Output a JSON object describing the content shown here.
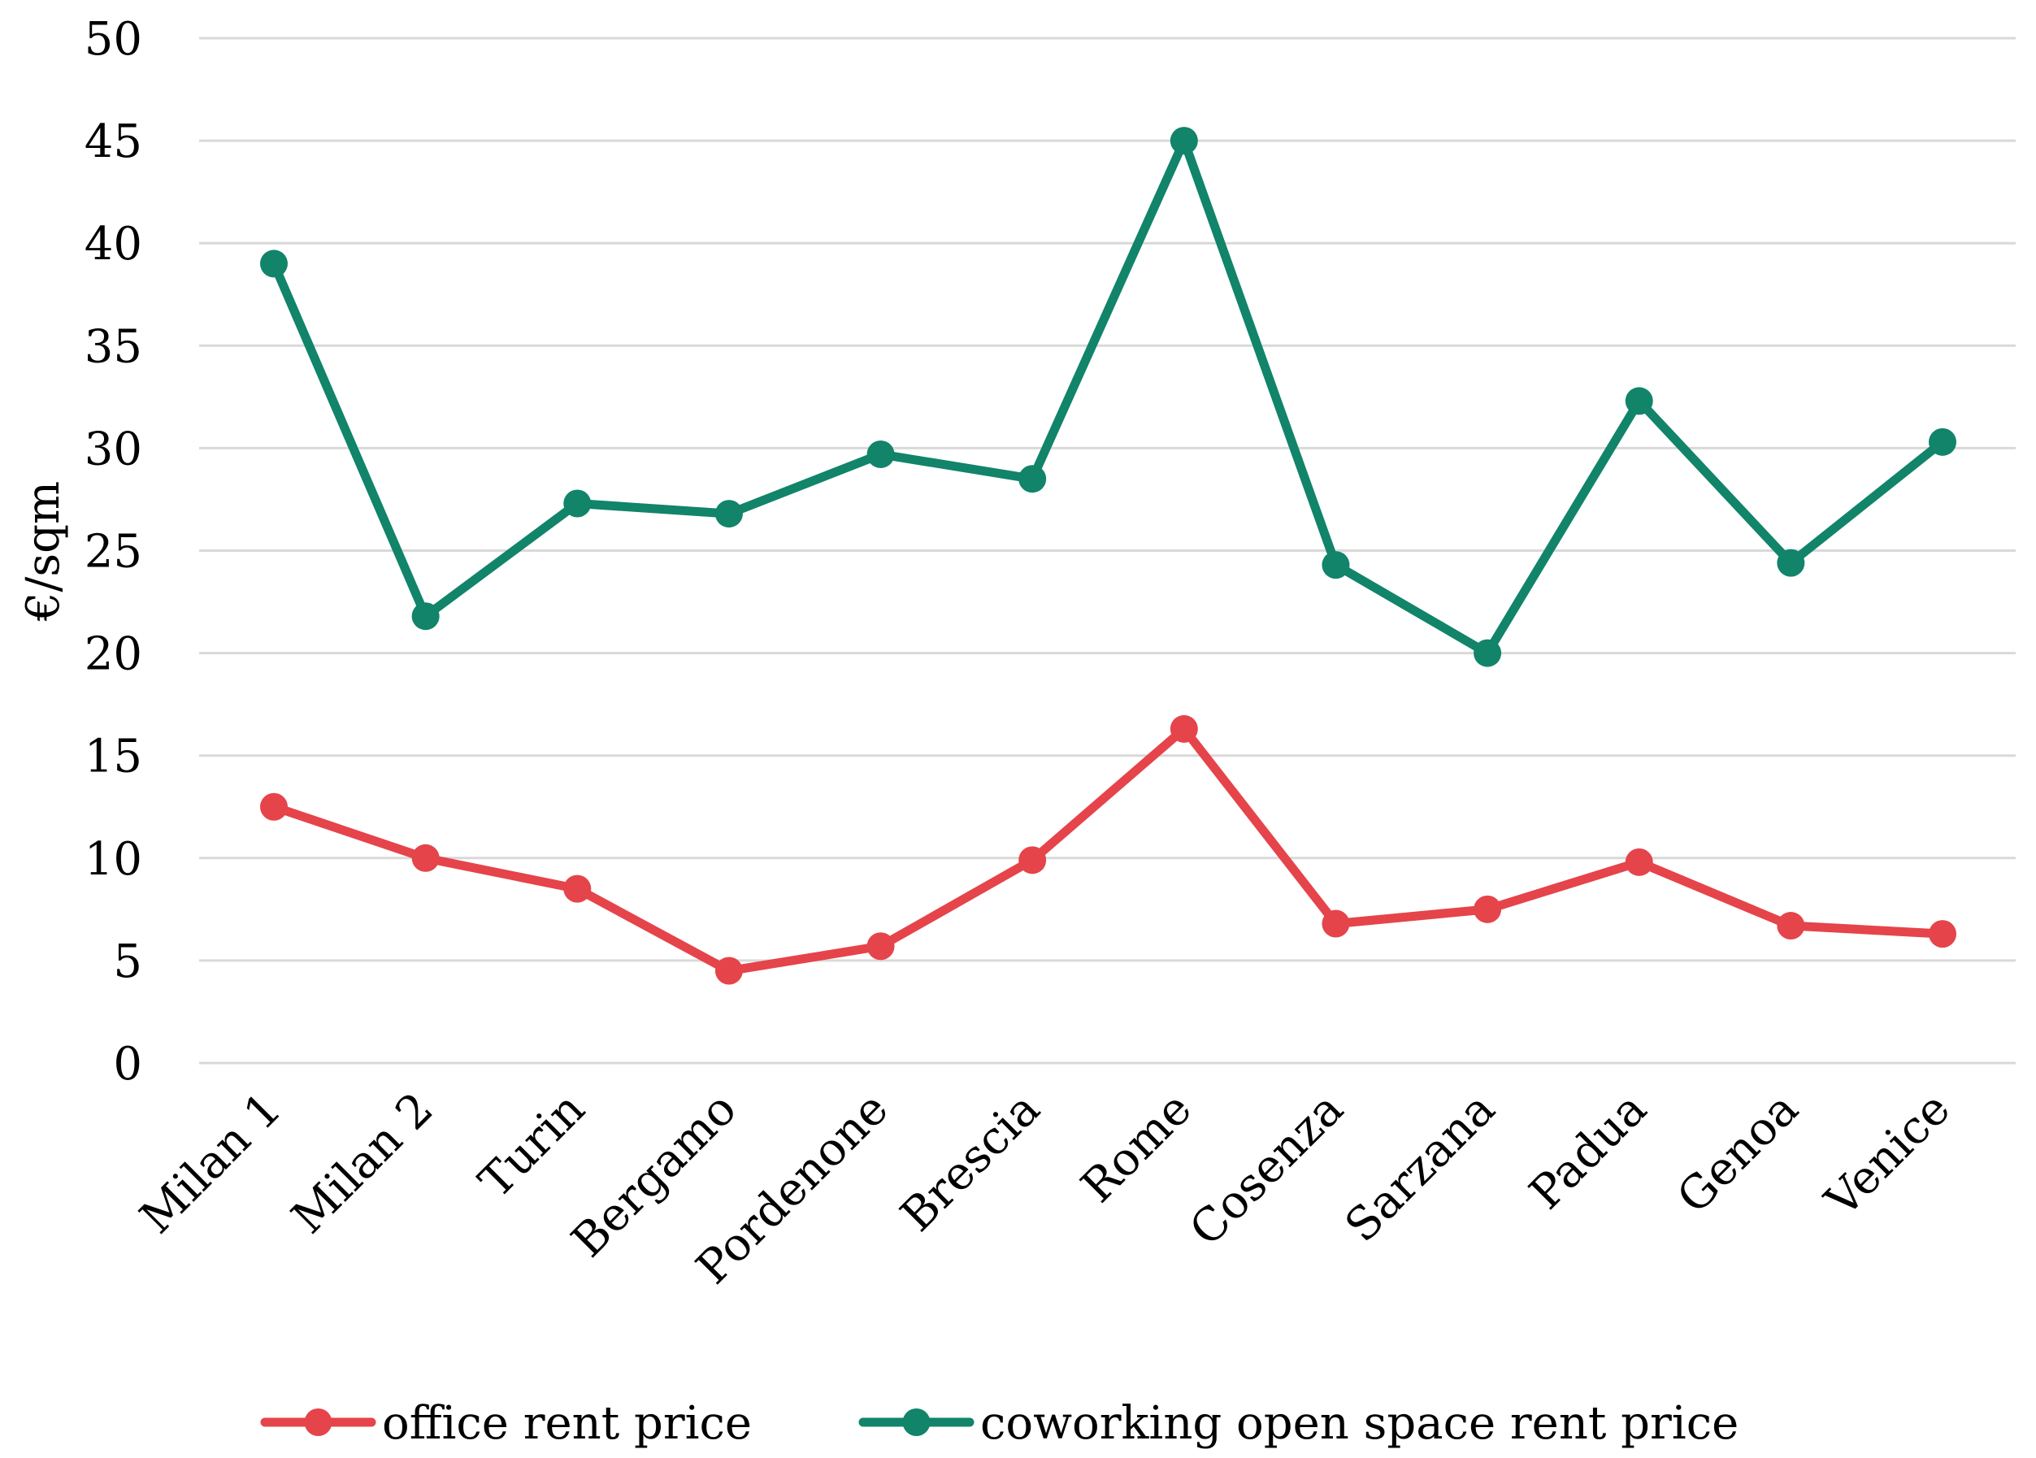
{
  "chart_data": {
    "type": "line",
    "title": "",
    "xlabel": "",
    "ylabel": "€/sqm",
    "ylim": [
      0,
      50
    ],
    "yticks": [
      0,
      5,
      10,
      15,
      20,
      25,
      30,
      35,
      40,
      45,
      50
    ],
    "grid": "horizontal",
    "legend_position": "bottom",
    "categories": [
      "Milan 1",
      "Milan 2",
      "Turin",
      "Bergamo",
      "Pordenone",
      "Brescia",
      "Rome",
      "Cosenza",
      "Sarzana",
      "Padua",
      "Genoa",
      "Venice"
    ],
    "series": [
      {
        "name": "office rent price",
        "color": "#e5444a",
        "values": [
          12.5,
          10.0,
          8.5,
          4.5,
          5.7,
          9.9,
          16.3,
          6.8,
          7.5,
          9.8,
          6.7,
          6.3
        ]
      },
      {
        "name": "coworking open space rent price",
        "color": "#11846a",
        "values": [
          39.0,
          21.8,
          27.3,
          26.8,
          29.7,
          28.5,
          45.0,
          24.3,
          20.0,
          32.3,
          24.4,
          30.3
        ]
      }
    ]
  }
}
